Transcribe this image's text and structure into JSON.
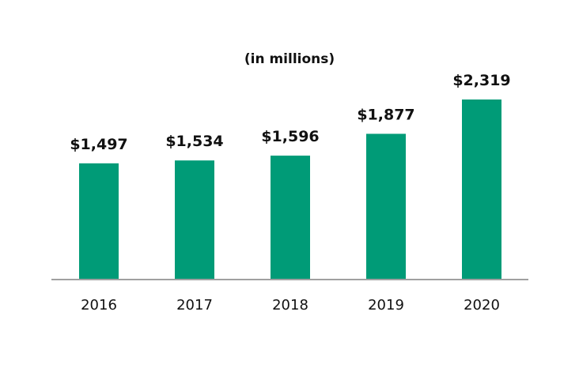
{
  "chart_data": {
    "type": "bar",
    "title": "",
    "subtitle": "(in millions)",
    "categories": [
      "2016",
      "2017",
      "2018",
      "2019",
      "2020"
    ],
    "values": [
      1497,
      1534,
      1596,
      1877,
      2319
    ],
    "data_labels": [
      "$1,497",
      "$1,534",
      "$1,596",
      "$1,877",
      "$2,319"
    ],
    "xlabel": "",
    "ylabel": "",
    "ylim": [
      0,
      2319
    ],
    "grid": false,
    "bar_color": "#009B77",
    "axis_color": "#A0A0A0"
  }
}
